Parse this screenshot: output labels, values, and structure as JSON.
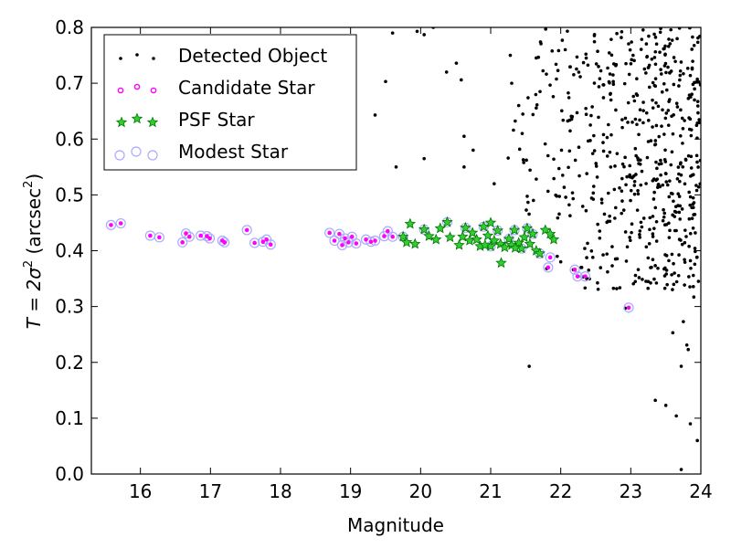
{
  "chart_data": {
    "type": "scatter",
    "xlabel": "Magnitude",
    "ylabel": {
      "prefix": "T = 2σ",
      "sup1": "2",
      "mid": " (arcsec",
      "sup2": "2",
      "suffix": ")"
    },
    "xlim": [
      15.3,
      24
    ],
    "ylim": [
      0.0,
      0.8
    ],
    "x_ticks": [
      16,
      17,
      18,
      19,
      20,
      21,
      22,
      23,
      24
    ],
    "y_ticks": [
      "0.0",
      "0.1",
      "0.2",
      "0.3",
      "0.4",
      "0.5",
      "0.6",
      "0.7",
      "0.8"
    ],
    "legend": {
      "placement": "top-left"
    },
    "series": [
      {
        "name": "Detected Object",
        "marker": "dot",
        "color": "#000000",
        "points": [
          [
            19.6,
            0.79
          ],
          [
            19.95,
            0.793
          ],
          [
            20.05,
            0.787
          ],
          [
            20.18,
            0.8
          ],
          [
            20.58,
            0.706
          ],
          [
            20.37,
            0.72
          ],
          [
            20.51,
            0.736
          ],
          [
            19.5,
            0.703
          ],
          [
            19.35,
            0.643
          ],
          [
            19.65,
            0.55
          ],
          [
            20.05,
            0.565
          ],
          [
            20.62,
            0.605
          ],
          [
            20.62,
            0.55
          ],
          [
            20.75,
            0.58
          ],
          [
            21.05,
            0.52
          ],
          [
            21.25,
            0.566
          ],
          [
            21.28,
            0.75
          ],
          [
            21.3,
            0.7
          ],
          [
            21.4,
            0.66
          ],
          [
            21.45,
            0.61
          ],
          [
            21.55,
            0.193
          ],
          [
            22.92,
            0.297
          ],
          [
            21.8,
            0.368
          ],
          [
            22.18,
            0.366
          ],
          [
            22.25,
            0.354
          ],
          [
            22.32,
            0.353
          ],
          [
            21.95,
            0.39
          ],
          [
            22.0,
            0.38
          ],
          [
            23.35,
            0.132
          ],
          [
            23.5,
            0.123
          ],
          [
            23.65,
            0.104
          ],
          [
            23.72,
            0.008
          ],
          [
            23.95,
            0.06
          ],
          [
            23.85,
            0.09
          ],
          [
            23.72,
            0.193
          ],
          [
            23.82,
            0.223
          ],
          [
            23.8,
            0.231
          ],
          [
            23.6,
            0.253
          ],
          [
            23.75,
            0.273
          ],
          [
            23.9,
            0.317
          ]
        ],
        "cloud": {
          "x_range": [
            21.2,
            24.0
          ],
          "y_range": [
            0.33,
            0.8
          ],
          "count": 560,
          "seed": 12345
        }
      },
      {
        "name": "Candidate Star",
        "marker": "small-dot",
        "color": "#ff00ff",
        "points": [
          [
            15.58,
            0.446
          ],
          [
            15.72,
            0.449
          ],
          [
            16.14,
            0.427
          ],
          [
            16.27,
            0.424
          ],
          [
            16.6,
            0.415
          ],
          [
            16.65,
            0.431
          ],
          [
            16.7,
            0.425
          ],
          [
            16.86,
            0.427
          ],
          [
            16.95,
            0.426
          ],
          [
            16.99,
            0.422
          ],
          [
            17.17,
            0.418
          ],
          [
            17.2,
            0.415
          ],
          [
            17.52,
            0.437
          ],
          [
            17.63,
            0.414
          ],
          [
            17.75,
            0.416
          ],
          [
            17.8,
            0.42
          ],
          [
            17.86,
            0.411
          ],
          [
            18.7,
            0.432
          ],
          [
            18.77,
            0.418
          ],
          [
            18.84,
            0.43
          ],
          [
            18.88,
            0.41
          ],
          [
            18.92,
            0.422
          ],
          [
            18.97,
            0.415
          ],
          [
            19.02,
            0.425
          ],
          [
            19.08,
            0.413
          ],
          [
            19.22,
            0.42
          ],
          [
            19.29,
            0.416
          ],
          [
            19.35,
            0.418
          ],
          [
            19.48,
            0.426
          ],
          [
            19.53,
            0.435
          ],
          [
            19.6,
            0.425
          ],
          [
            21.85,
            0.388
          ],
          [
            21.82,
            0.37
          ],
          [
            22.2,
            0.366
          ],
          [
            22.24,
            0.354
          ],
          [
            22.35,
            0.354
          ],
          [
            22.97,
            0.298
          ]
        ]
      },
      {
        "name": "PSF Star",
        "marker": "star",
        "color": "#00aa00",
        "points": [
          [
            19.75,
            0.425
          ],
          [
            19.8,
            0.415
          ],
          [
            19.85,
            0.448
          ],
          [
            19.92,
            0.412
          ],
          [
            20.05,
            0.438
          ],
          [
            20.12,
            0.426
          ],
          [
            20.22,
            0.42
          ],
          [
            20.28,
            0.44
          ],
          [
            20.38,
            0.451
          ],
          [
            20.42,
            0.424
          ],
          [
            20.55,
            0.41
          ],
          [
            20.6,
            0.425
          ],
          [
            20.64,
            0.441
          ],
          [
            20.7,
            0.418
          ],
          [
            20.74,
            0.432
          ],
          [
            20.8,
            0.42
          ],
          [
            20.85,
            0.408
          ],
          [
            20.9,
            0.443
          ],
          [
            20.96,
            0.427
          ],
          [
            21.0,
            0.408
          ],
          [
            21.05,
            0.418
          ],
          [
            21.1,
            0.436
          ],
          [
            21.14,
            0.412
          ],
          [
            21.2,
            0.406
          ],
          [
            21.26,
            0.421
          ],
          [
            21.3,
            0.41
          ],
          [
            21.34,
            0.437
          ],
          [
            21.4,
            0.414
          ],
          [
            21.44,
            0.404
          ],
          [
            21.48,
            0.424
          ],
          [
            21.52,
            0.44
          ],
          [
            21.56,
            0.412
          ],
          [
            21.6,
            0.43
          ],
          [
            21.65,
            0.4
          ],
          [
            21.7,
            0.395
          ],
          [
            21.78,
            0.437
          ],
          [
            21.85,
            0.43
          ],
          [
            21.9,
            0.42
          ],
          [
            21.15,
            0.378
          ],
          [
            21.0,
            0.45
          ],
          [
            20.92,
            0.41
          ],
          [
            21.35,
            0.405
          ]
        ]
      },
      {
        "name": "Modest Star",
        "marker": "open-circle",
        "color": "#aaaaff",
        "points": [
          [
            15.58,
            0.446
          ],
          [
            15.72,
            0.449
          ],
          [
            16.14,
            0.427
          ],
          [
            16.27,
            0.424
          ],
          [
            16.6,
            0.415
          ],
          [
            16.65,
            0.431
          ],
          [
            16.7,
            0.425
          ],
          [
            16.86,
            0.427
          ],
          [
            16.95,
            0.426
          ],
          [
            16.99,
            0.422
          ],
          [
            17.17,
            0.418
          ],
          [
            17.2,
            0.415
          ],
          [
            17.52,
            0.437
          ],
          [
            17.63,
            0.414
          ],
          [
            17.75,
            0.416
          ],
          [
            17.8,
            0.42
          ],
          [
            17.86,
            0.411
          ],
          [
            18.7,
            0.432
          ],
          [
            18.77,
            0.418
          ],
          [
            18.84,
            0.43
          ],
          [
            18.88,
            0.41
          ],
          [
            18.92,
            0.422
          ],
          [
            18.97,
            0.415
          ],
          [
            19.02,
            0.425
          ],
          [
            19.08,
            0.413
          ],
          [
            19.22,
            0.42
          ],
          [
            19.29,
            0.416
          ],
          [
            19.35,
            0.418
          ],
          [
            19.48,
            0.426
          ],
          [
            19.53,
            0.435
          ],
          [
            19.6,
            0.425
          ],
          [
            21.85,
            0.388
          ],
          [
            21.82,
            0.37
          ],
          [
            22.2,
            0.366
          ],
          [
            22.24,
            0.354
          ],
          [
            22.35,
            0.354
          ],
          [
            22.97,
            0.298
          ],
          [
            19.75,
            0.425
          ],
          [
            20.05,
            0.438
          ],
          [
            20.38,
            0.451
          ],
          [
            20.64,
            0.441
          ],
          [
            20.9,
            0.443
          ],
          [
            21.1,
            0.436
          ],
          [
            21.34,
            0.437
          ],
          [
            21.52,
            0.44
          ],
          [
            21.6,
            0.43
          ],
          [
            21.0,
            0.408
          ],
          [
            21.26,
            0.421
          ],
          [
            21.44,
            0.404
          ],
          [
            21.7,
            0.395
          ]
        ]
      }
    ]
  }
}
